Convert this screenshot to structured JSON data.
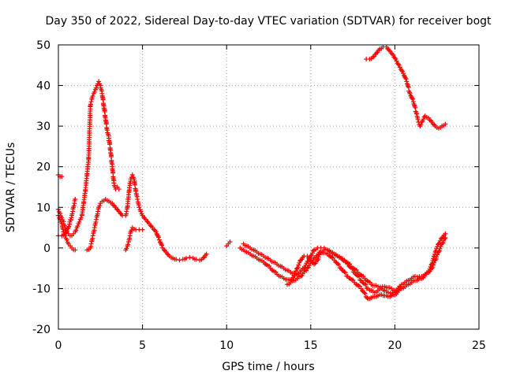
{
  "chart_data": {
    "type": "scatter",
    "title": "Day 350 of 2022, Sidereal Day-to-day VTEC variation (SDTVAR) for receiver bogt",
    "xlabel": "GPS time / hours",
    "ylabel": "SDTVAR / TECUs",
    "xlim": [
      0,
      25
    ],
    "ylim": [
      -20,
      50
    ],
    "xticks": [
      0,
      5,
      10,
      15,
      20,
      25
    ],
    "yticks": [
      -20,
      -10,
      0,
      10,
      20,
      30,
      40,
      50
    ],
    "grid": true,
    "marker": "plus",
    "color": "#ff0000",
    "series": [
      {
        "name": "s1",
        "points": [
          [
            0,
            18
          ],
          [
            0.1,
            17.5
          ],
          [
            0.2,
            17.6
          ]
        ]
      },
      {
        "name": "s2",
        "points": [
          [
            0,
            9.5
          ],
          [
            0.1,
            8.5
          ],
          [
            0.2,
            7.5
          ],
          [
            0.3,
            6.5
          ],
          [
            0.4,
            5
          ],
          [
            0.5,
            4
          ],
          [
            0.6,
            3.5
          ],
          [
            0.7,
            3
          ],
          [
            0.8,
            3
          ],
          [
            0.9,
            3.5
          ],
          [
            1,
            4
          ],
          [
            1.1,
            5
          ],
          [
            1.2,
            6
          ],
          [
            1.3,
            7
          ],
          [
            1.4,
            8
          ],
          [
            1.5,
            11
          ],
          [
            1.6,
            14
          ],
          [
            1.7,
            18
          ],
          [
            1.8,
            22
          ],
          [
            1.9,
            35
          ],
          [
            2,
            37
          ],
          [
            2.1,
            38
          ],
          [
            2.2,
            39
          ],
          [
            2.3,
            40
          ],
          [
            2.4,
            41
          ],
          [
            2.5,
            40
          ],
          [
            2.6,
            38
          ],
          [
            2.7,
            35
          ],
          [
            2.8,
            32
          ],
          [
            2.9,
            29
          ],
          [
            3,
            27
          ],
          [
            3.1,
            24
          ],
          [
            3.2,
            20
          ],
          [
            3.3,
            16
          ],
          [
            3.4,
            14.5
          ],
          [
            3.5,
            15
          ],
          [
            3.6,
            14.5
          ]
        ]
      },
      {
        "name": "s3",
        "points": [
          [
            0,
            8
          ],
          [
            0.1,
            7
          ],
          [
            0.2,
            6
          ],
          [
            0.3,
            4
          ],
          [
            0.4,
            3
          ],
          [
            0.5,
            2
          ],
          [
            0.6,
            1
          ],
          [
            0.7,
            0.5
          ],
          [
            0.8,
            0
          ],
          [
            0.9,
            -0.5
          ],
          [
            1,
            -0.5
          ]
        ]
      },
      {
        "name": "s4",
        "points": [
          [
            0,
            3
          ],
          [
            0.2,
            3
          ],
          [
            0.4,
            3.5
          ],
          [
            0.6,
            5
          ],
          [
            0.8,
            8
          ],
          [
            0.9,
            10
          ],
          [
            1,
            12
          ]
        ]
      },
      {
        "name": "s5",
        "points": [
          [
            1.7,
            -0.5
          ],
          [
            1.9,
            0
          ],
          [
            2,
            2
          ],
          [
            2.1,
            4
          ],
          [
            2.2,
            6
          ],
          [
            2.3,
            8
          ],
          [
            2.4,
            10
          ],
          [
            2.5,
            11
          ],
          [
            2.6,
            11.5
          ],
          [
            2.8,
            12
          ],
          [
            3,
            11.5
          ],
          [
            3.2,
            11
          ],
          [
            3.4,
            10
          ],
          [
            3.6,
            9
          ],
          [
            3.8,
            8
          ],
          [
            4,
            8
          ],
          [
            4.1,
            10
          ],
          [
            4.2,
            14
          ],
          [
            4.3,
            17
          ],
          [
            4.4,
            18
          ],
          [
            4.5,
            17
          ],
          [
            4.6,
            14
          ],
          [
            4.7,
            12
          ],
          [
            4.8,
            10
          ],
          [
            4.9,
            9
          ],
          [
            5,
            8
          ],
          [
            5.2,
            7
          ],
          [
            5.4,
            6
          ],
          [
            5.6,
            5
          ],
          [
            5.8,
            4
          ],
          [
            6,
            2
          ],
          [
            6.2,
            0
          ],
          [
            6.4,
            -1
          ],
          [
            6.6,
            -2
          ],
          [
            6.8,
            -2.5
          ],
          [
            7,
            -2.8
          ],
          [
            7.2,
            -3
          ],
          [
            7.4,
            -2.8
          ],
          [
            7.6,
            -2.5
          ],
          [
            7.8,
            -2.3
          ],
          [
            8,
            -2.5
          ],
          [
            8.2,
            -2.8
          ],
          [
            8.4,
            -3
          ],
          [
            8.6,
            -2.5
          ],
          [
            8.8,
            -1.5
          ]
        ]
      },
      {
        "name": "s6",
        "points": [
          [
            4,
            -0.5
          ],
          [
            4.1,
            0.5
          ],
          [
            4.2,
            2
          ],
          [
            4.3,
            4
          ],
          [
            4.4,
            5
          ],
          [
            4.6,
            4.5
          ],
          [
            4.8,
            4.5
          ],
          [
            5,
            4.5
          ]
        ]
      },
      {
        "name": "s7",
        "points": [
          [
            10,
            0.5
          ],
          [
            10.1,
            1
          ],
          [
            10.2,
            1.5
          ]
        ]
      },
      {
        "name": "s8",
        "points": [
          [
            10.8,
            0
          ],
          [
            11,
            -0.5
          ],
          [
            11.4,
            -1.5
          ],
          [
            11.8,
            -2.5
          ],
          [
            12.2,
            -3.5
          ],
          [
            12.6,
            -5
          ],
          [
            13,
            -6.5
          ],
          [
            13.4,
            -7.5
          ],
          [
            13.8,
            -8
          ],
          [
            14,
            -7
          ],
          [
            14.2,
            -5
          ],
          [
            14.4,
            -3
          ],
          [
            14.6,
            -2
          ],
          [
            14.8,
            -2
          ],
          [
            15,
            -3
          ],
          [
            15.2,
            -4
          ],
          [
            15.4,
            -3
          ],
          [
            15.6,
            -1
          ],
          [
            15.8,
            -0.5
          ],
          [
            16,
            -0.5
          ],
          [
            16.4,
            -1.5
          ],
          [
            16.8,
            -2.5
          ],
          [
            17.2,
            -4
          ],
          [
            17.6,
            -6
          ],
          [
            18,
            -8
          ],
          [
            18.4,
            -10
          ],
          [
            18.8,
            -11
          ],
          [
            19.2,
            -10
          ],
          [
            19.6,
            -11
          ],
          [
            20,
            -11
          ],
          [
            20.4,
            -9
          ],
          [
            20.8,
            -8
          ],
          [
            21.2,
            -7
          ],
          [
            21.6,
            -7
          ],
          [
            22,
            -6
          ],
          [
            22.2,
            -4
          ],
          [
            22.4,
            -1
          ],
          [
            22.6,
            1
          ],
          [
            22.8,
            2.5
          ],
          [
            23,
            3.5
          ]
        ]
      },
      {
        "name": "s9",
        "points": [
          [
            11,
            1
          ],
          [
            11.4,
            0
          ],
          [
            11.8,
            -1
          ],
          [
            12.2,
            -2
          ],
          [
            12.6,
            -3
          ],
          [
            13,
            -4
          ],
          [
            13.4,
            -5
          ],
          [
            13.8,
            -6
          ],
          [
            14.2,
            -6.5
          ],
          [
            14.6,
            -5
          ],
          [
            15,
            -2
          ],
          [
            15.2,
            -0.5
          ],
          [
            15.4,
            0
          ],
          [
            15.6,
            0
          ],
          [
            15.8,
            0
          ],
          [
            16.2,
            -1
          ],
          [
            16.6,
            -2
          ],
          [
            17,
            -3
          ],
          [
            17.4,
            -4.5
          ],
          [
            17.8,
            -6
          ],
          [
            18.2,
            -7.5
          ],
          [
            18.6,
            -9
          ],
          [
            19,
            -9.5
          ],
          [
            19.4,
            -9.5
          ],
          [
            19.8,
            -10
          ],
          [
            20,
            -10.5
          ],
          [
            20.4,
            -10
          ]
        ]
      },
      {
        "name": "s10",
        "points": [
          [
            13.6,
            -9
          ],
          [
            14,
            -8
          ],
          [
            14.4,
            -7
          ],
          [
            14.8,
            -5
          ],
          [
            15.2,
            -2.5
          ],
          [
            15.6,
            -1
          ],
          [
            16,
            -1.5
          ],
          [
            16.4,
            -3
          ],
          [
            16.8,
            -5
          ],
          [
            17.2,
            -7
          ],
          [
            17.6,
            -8.5
          ],
          [
            18,
            -10
          ],
          [
            18.4,
            -12.5
          ],
          [
            18.8,
            -12
          ],
          [
            19.2,
            -11.5
          ],
          [
            19.6,
            -12
          ],
          [
            20,
            -11.5
          ],
          [
            20.4,
            -10
          ],
          [
            20.8,
            -9
          ],
          [
            21.2,
            -8
          ],
          [
            21.6,
            -7.5
          ],
          [
            22,
            -6
          ],
          [
            22.2,
            -5
          ],
          [
            22.4,
            -3
          ],
          [
            22.6,
            -1
          ],
          [
            22.8,
            1
          ],
          [
            23,
            2.5
          ]
        ]
      },
      {
        "name": "s11",
        "points": [
          [
            18.3,
            46.5
          ],
          [
            18.5,
            46.5
          ],
          [
            18.7,
            47
          ],
          [
            18.9,
            48
          ],
          [
            19.1,
            49
          ],
          [
            19.3,
            49.5
          ],
          [
            19.5,
            49.5
          ],
          [
            19.7,
            48.5
          ],
          [
            19.9,
            47.5
          ],
          [
            20.1,
            46
          ],
          [
            20.3,
            44.5
          ],
          [
            20.5,
            43
          ],
          [
            20.7,
            41
          ],
          [
            20.9,
            38
          ],
          [
            21.1,
            36
          ],
          [
            21.3,
            33
          ],
          [
            21.4,
            31
          ],
          [
            21.5,
            30
          ],
          [
            21.6,
            31
          ],
          [
            21.8,
            32.5
          ],
          [
            22,
            32
          ],
          [
            22.2,
            31
          ],
          [
            22.4,
            30
          ],
          [
            22.6,
            29.5
          ],
          [
            22.8,
            30
          ],
          [
            23,
            30.5
          ]
        ]
      }
    ]
  }
}
